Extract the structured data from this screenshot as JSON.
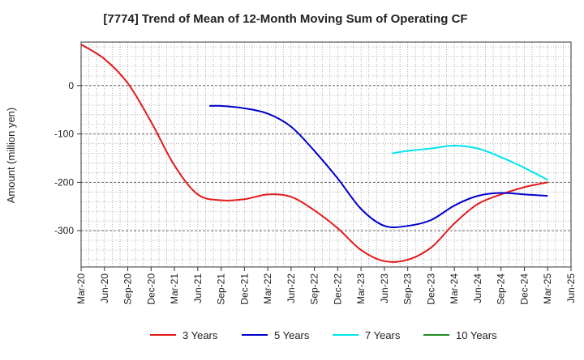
{
  "chart_data": {
    "type": "line",
    "title": "[7774]  Trend of Mean of 12-Month Moving Sum of Operating CF",
    "xlabel": "",
    "ylabel": "Amount (million yen)",
    "ylim": [
      -375,
      90
    ],
    "yticks": [
      0,
      -100,
      -200,
      -300
    ],
    "ytick_labels": [
      "0",
      "-100",
      "-200",
      "-300"
    ],
    "x_ticks": [
      "Mar-20",
      "Jun-20",
      "Sep-20",
      "Dec-20",
      "Mar-21",
      "Jun-21",
      "Sep-21",
      "Dec-21",
      "Mar-22",
      "Jun-22",
      "Sep-22",
      "Dec-22",
      "Mar-23",
      "Jun-23",
      "Sep-23",
      "Dec-23",
      "Mar-24",
      "Jun-24",
      "Sep-24",
      "Dec-24",
      "Mar-25",
      "Jun-25"
    ],
    "grid": true,
    "legend_position": "bottom",
    "series": [
      {
        "name": "3 Years",
        "color": "#e31a1c",
        "points": [
          [
            0,
            85
          ],
          [
            1,
            55
          ],
          [
            2,
            5
          ],
          [
            3,
            -75
          ],
          [
            4,
            -165
          ],
          [
            5,
            -225
          ],
          [
            6,
            -237
          ],
          [
            7,
            -235
          ],
          [
            8,
            -225
          ],
          [
            9,
            -230
          ],
          [
            10,
            -258
          ],
          [
            11,
            -295
          ],
          [
            12,
            -340
          ],
          [
            13,
            -363
          ],
          [
            14,
            -360
          ],
          [
            15,
            -335
          ],
          [
            16,
            -285
          ],
          [
            17,
            -245
          ],
          [
            18,
            -225
          ],
          [
            19,
            -210
          ],
          [
            20,
            -200
          ]
        ]
      },
      {
        "name": "5 Years",
        "color": "#0000cc",
        "points": [
          [
            5.5,
            -42
          ],
          [
            6,
            -42
          ],
          [
            7,
            -47
          ],
          [
            8,
            -58
          ],
          [
            9,
            -85
          ],
          [
            10,
            -135
          ],
          [
            11,
            -192
          ],
          [
            12,
            -255
          ],
          [
            13,
            -290
          ],
          [
            14,
            -290
          ],
          [
            15,
            -278
          ],
          [
            16,
            -248
          ],
          [
            17,
            -228
          ],
          [
            18,
            -222
          ],
          [
            19,
            -225
          ],
          [
            20,
            -228
          ]
        ]
      },
      {
        "name": "7 Years",
        "color": "#00e5ee",
        "points": [
          [
            13.33,
            -140
          ],
          [
            14,
            -135
          ],
          [
            15,
            -130
          ],
          [
            16,
            -124
          ],
          [
            17,
            -130
          ],
          [
            18,
            -148
          ],
          [
            19,
            -170
          ],
          [
            20,
            -195
          ]
        ]
      },
      {
        "name": "10 Years",
        "color": "#228b22",
        "points": []
      }
    ]
  }
}
